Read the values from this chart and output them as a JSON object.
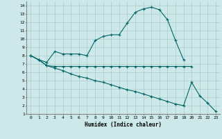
{
  "xlabel": "Humidex (Indice chaleur)",
  "xlim": [
    -0.5,
    23.5
  ],
  "ylim": [
    1,
    14.5
  ],
  "xticks": [
    0,
    1,
    2,
    3,
    4,
    5,
    6,
    7,
    8,
    9,
    10,
    11,
    12,
    13,
    14,
    15,
    16,
    17,
    18,
    19,
    20,
    21,
    22,
    23
  ],
  "yticks": [
    1,
    2,
    3,
    4,
    5,
    6,
    7,
    8,
    9,
    10,
    11,
    12,
    13,
    14
  ],
  "bg_color": "#cce8e8",
  "grid_color": "#aacccc",
  "line_color": "#006666",
  "curve1_x": [
    0,
    1,
    2,
    3,
    4,
    5,
    6,
    7,
    8,
    9,
    10,
    11,
    12,
    13,
    14,
    15,
    16,
    17,
    18,
    19
  ],
  "curve1_y": [
    8.0,
    7.5,
    7.2,
    8.5,
    8.2,
    8.2,
    8.2,
    8.0,
    9.8,
    10.3,
    10.5,
    10.5,
    11.9,
    13.2,
    13.6,
    13.8,
    13.5,
    12.3,
    9.8,
    7.5
  ],
  "curve2_x": [
    0,
    1,
    2,
    3,
    4,
    5,
    6,
    7,
    8,
    9,
    10,
    11,
    12,
    13,
    14,
    15,
    16,
    17,
    18,
    19,
    20
  ],
  "curve2_y": [
    8.0,
    7.5,
    6.8,
    6.7,
    6.7,
    6.7,
    6.7,
    6.7,
    6.7,
    6.7,
    6.7,
    6.7,
    6.7,
    6.7,
    6.7,
    6.7,
    6.7,
    6.7,
    6.7,
    6.7,
    6.7
  ],
  "curve3_x": [
    0,
    1,
    2,
    3,
    4,
    5,
    6,
    7,
    8,
    9,
    10,
    11,
    12,
    13,
    14,
    15,
    16,
    17,
    18,
    19,
    20,
    21,
    22,
    23
  ],
  "curve3_y": [
    8.0,
    7.5,
    6.8,
    6.5,
    6.2,
    5.8,
    5.5,
    5.3,
    5.0,
    4.8,
    4.5,
    4.2,
    3.9,
    3.7,
    3.4,
    3.1,
    2.8,
    2.5,
    2.2,
    2.0,
    4.8,
    3.2,
    2.3,
    1.3
  ]
}
